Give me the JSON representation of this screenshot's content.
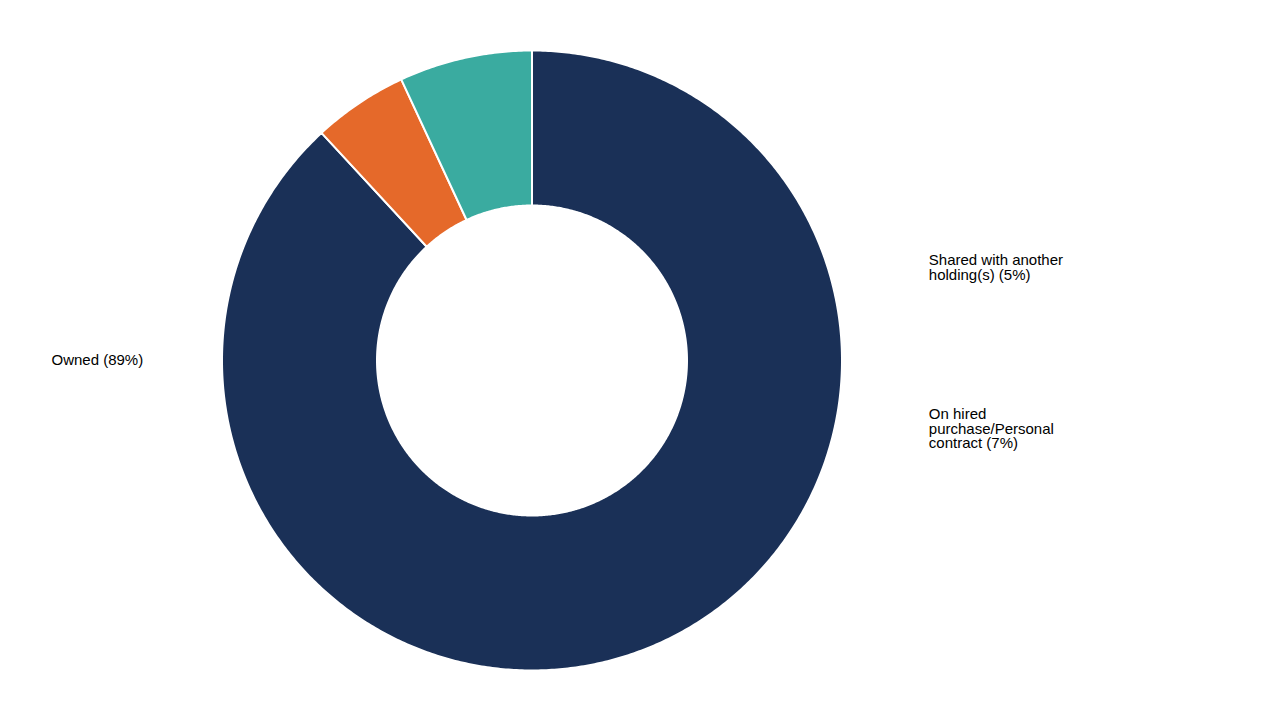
{
  "chart_data": {
    "type": "pie",
    "categories": [
      "Owned (89%)",
      "Shared with another\nholding(s) (5%)",
      "On hired\npurchase/Personal\ncontract (7%)"
    ],
    "values": [
      89,
      5,
      7
    ],
    "colors": [
      "#1a3057",
      "#e5692a",
      "#3aaba0"
    ]
  }
}
